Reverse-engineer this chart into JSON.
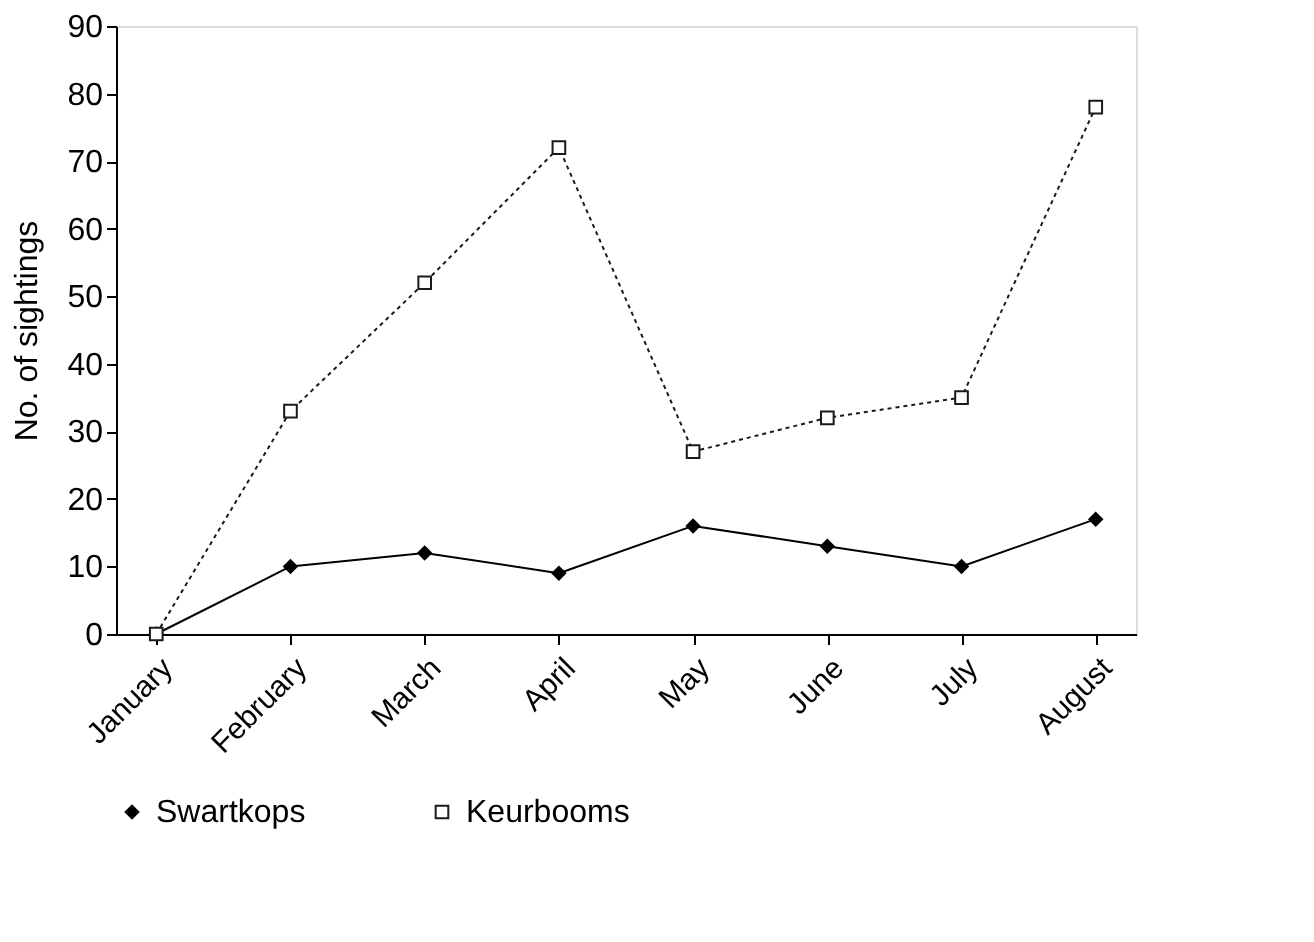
{
  "chart_data": {
    "type": "line",
    "ylabel": "No. of sightings",
    "categories": [
      "January",
      "February",
      "March",
      "April",
      "May",
      "June",
      "July",
      "August"
    ],
    "series": [
      {
        "name": "Swartkops",
        "color": "#000000",
        "marker": "diamond",
        "line_style": "solid",
        "values": [
          0,
          10,
          12,
          9,
          16,
          13,
          10,
          17
        ]
      },
      {
        "name": "Keurbooms",
        "color": "#1a1a1a",
        "marker": "square",
        "line_style": "dotted",
        "values": [
          0,
          33,
          52,
          72,
          27,
          32,
          35,
          78
        ]
      }
    ],
    "ylim": [
      0,
      90
    ],
    "yticks": [
      0,
      10,
      20,
      30,
      40,
      50,
      60,
      70,
      80,
      90
    ],
    "grid": false,
    "legend": "bottom"
  }
}
